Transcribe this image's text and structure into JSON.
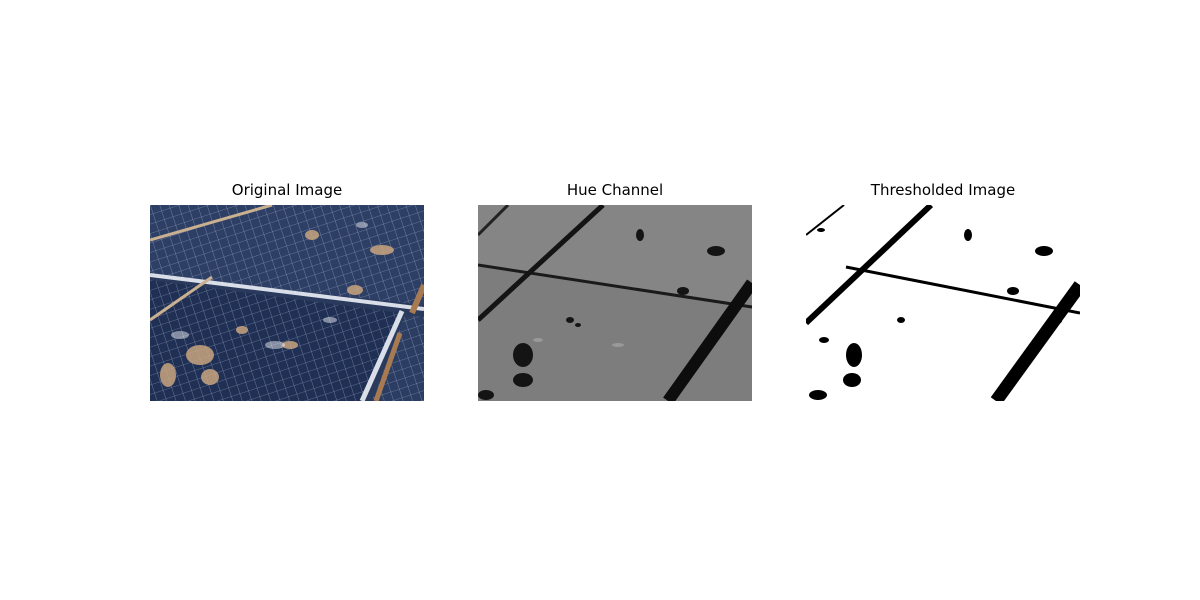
{
  "figure": {
    "panels": [
      {
        "title": "Original Image"
      },
      {
        "title": "Hue Channel"
      },
      {
        "title": "Thresholded Image"
      }
    ]
  }
}
